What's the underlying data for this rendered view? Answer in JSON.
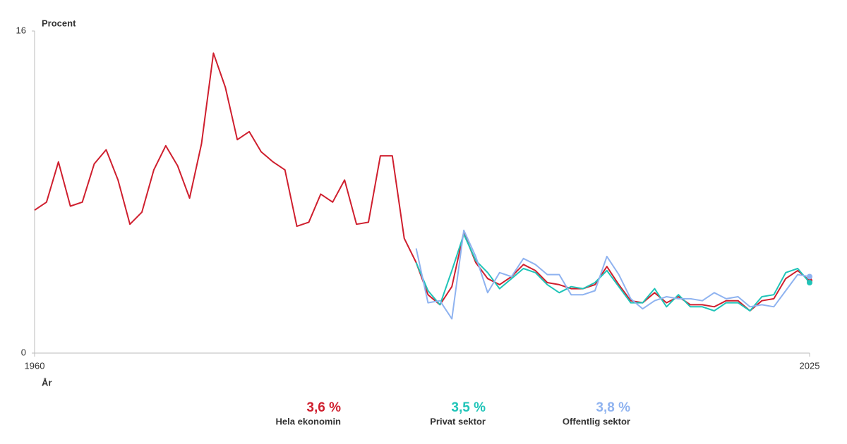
{
  "chart_data": {
    "type": "line",
    "ylabel": "Procent",
    "xlabel": "År",
    "xlim": [
      1960,
      2025
    ],
    "xticks": [
      1960,
      2025
    ],
    "ylim": [
      0,
      16
    ],
    "yticks": [
      0,
      16
    ],
    "grid": false,
    "last_point_marker": true,
    "x": [
      1960,
      1961,
      1962,
      1963,
      1964,
      1965,
      1966,
      1967,
      1968,
      1969,
      1970,
      1971,
      1972,
      1973,
      1974,
      1975,
      1976,
      1977,
      1978,
      1979,
      1980,
      1981,
      1982,
      1983,
      1984,
      1985,
      1986,
      1987,
      1988,
      1989,
      1990,
      1991,
      1992,
      1993,
      1994,
      1995,
      1996,
      1997,
      1998,
      1999,
      2000,
      2001,
      2002,
      2003,
      2004,
      2005,
      2006,
      2007,
      2008,
      2009,
      2010,
      2011,
      2012,
      2013,
      2014,
      2015,
      2016,
      2017,
      2018,
      2019,
      2020,
      2021,
      2022,
      2023,
      2024,
      2025
    ],
    "series": [
      {
        "name": "Hela ekonomin",
        "latest_label": "3,6 %",
        "color": "#cf1f2e",
        "values": [
          7.1,
          7.5,
          9.5,
          7.3,
          7.5,
          9.4,
          10.1,
          8.6,
          6.4,
          7.0,
          9.1,
          10.3,
          9.3,
          7.7,
          10.4,
          14.9,
          13.2,
          10.6,
          11.0,
          10.0,
          9.5,
          9.1,
          6.3,
          6.5,
          7.9,
          7.5,
          8.6,
          6.4,
          6.5,
          9.8,
          9.8,
          5.7,
          4.5,
          2.9,
          2.4,
          3.3,
          6.0,
          4.5,
          3.7,
          3.4,
          3.8,
          4.4,
          4.1,
          3.5,
          3.4,
          3.2,
          3.2,
          3.4,
          4.3,
          3.4,
          2.6,
          2.5,
          3.0,
          2.5,
          2.8,
          2.4,
          2.4,
          2.3,
          2.6,
          2.6,
          2.1,
          2.6,
          2.7,
          3.7,
          4.1,
          3.6
        ]
      },
      {
        "name": "Privat sektor",
        "latest_label": "3,5 %",
        "color": "#1fc4b8",
        "values": [
          null,
          null,
          null,
          null,
          null,
          null,
          null,
          null,
          null,
          null,
          null,
          null,
          null,
          null,
          null,
          null,
          null,
          null,
          null,
          null,
          null,
          null,
          null,
          null,
          null,
          null,
          null,
          null,
          null,
          null,
          null,
          null,
          4.5,
          3.1,
          2.4,
          4.1,
          5.9,
          4.6,
          4.0,
          3.2,
          3.7,
          4.2,
          4.0,
          3.4,
          3.0,
          3.3,
          3.2,
          3.5,
          4.1,
          3.3,
          2.5,
          2.5,
          3.2,
          2.3,
          2.9,
          2.3,
          2.3,
          2.1,
          2.5,
          2.5,
          2.1,
          2.8,
          2.9,
          4.0,
          4.2,
          3.5
        ]
      },
      {
        "name": "Offentlig sektor",
        "latest_label": "3,8 %",
        "color": "#8fb3f0",
        "values": [
          null,
          null,
          null,
          null,
          null,
          null,
          null,
          null,
          null,
          null,
          null,
          null,
          null,
          null,
          null,
          null,
          null,
          null,
          null,
          null,
          null,
          null,
          null,
          null,
          null,
          null,
          null,
          null,
          null,
          null,
          null,
          null,
          5.2,
          2.5,
          2.6,
          1.7,
          6.1,
          4.8,
          3.0,
          4.0,
          3.8,
          4.7,
          4.4,
          3.9,
          3.9,
          2.9,
          2.9,
          3.1,
          4.8,
          3.9,
          2.7,
          2.2,
          2.6,
          2.8,
          2.7,
          2.7,
          2.6,
          3.0,
          2.7,
          2.8,
          2.3,
          2.4,
          2.3,
          3.1,
          3.9,
          3.8
        ]
      }
    ]
  }
}
